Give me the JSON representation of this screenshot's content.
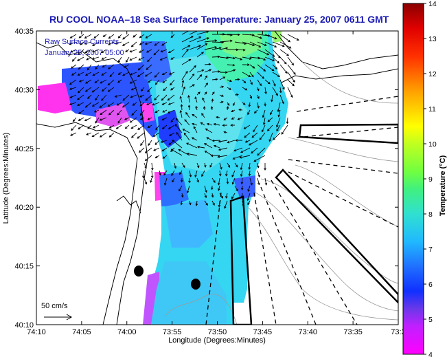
{
  "title": "RU COOL  NOAA–18  Sea Surface Temperature:  January 25, 2007 0611 GMT",
  "overlay": {
    "line1": "Raw Surface Currents",
    "line2": "January 25, 2007 05:00"
  },
  "scale_label": "50 cm/s",
  "axes": {
    "xlabel": "Longitude (Degrees:Minutes)",
    "ylabel": "Latitude (Degrees:Minutes)",
    "xticks": [
      "74:10",
      "74:05",
      "74:00",
      "73:55",
      "73:50",
      "73:45",
      "73:40",
      "73:35",
      "73:3"
    ],
    "yticks": [
      "40:35",
      "40:30",
      "40:25",
      "40:20",
      "40:15",
      "40:10"
    ]
  },
  "colorbar": {
    "label": "Temperature (°C)",
    "ticks": [
      "14",
      "13",
      "12",
      "11",
      "10",
      "9",
      "8",
      "7",
      "6",
      "5",
      "4"
    ],
    "range": [
      4,
      14
    ],
    "colors": [
      "#ff00ff",
      "#8a2be2",
      "#0000ff",
      "#00bfff",
      "#00ffcc",
      "#66ff00",
      "#ffff00",
      "#ffa500",
      "#ff0000",
      "#8b0000"
    ]
  },
  "colors": {
    "title": "#1a1ab4",
    "sst_warm": "#2bd8ec",
    "sst_cool": "#3040ff",
    "land": "#ffffff"
  }
}
